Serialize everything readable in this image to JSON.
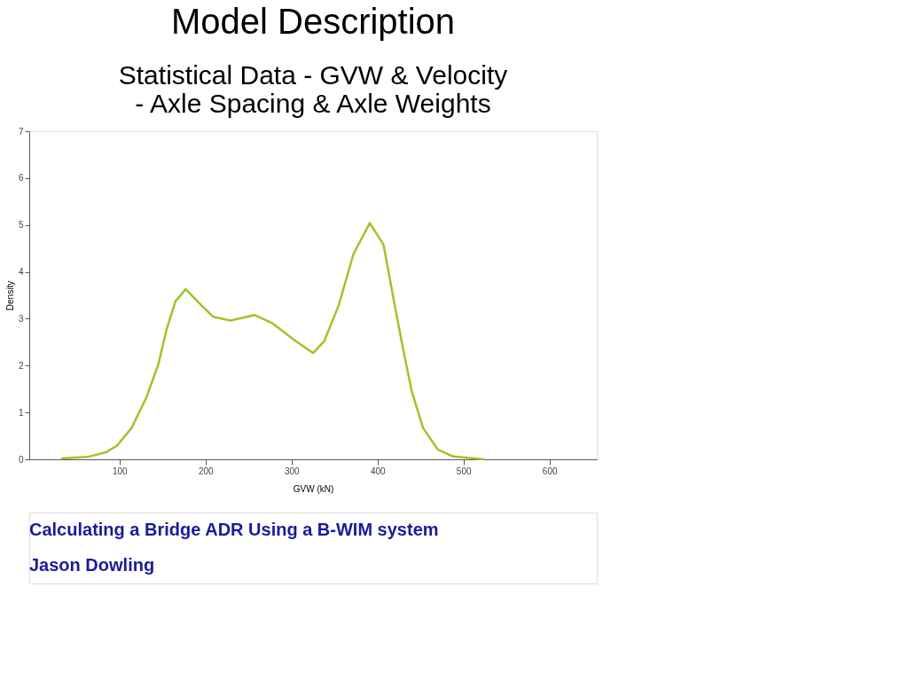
{
  "chart_data": {
    "type": "line",
    "title": "Model Description",
    "subtitle": [
      "Statistical Data - GVW & Velocity",
      "                              -  Axle Spacing & Axle Weights"
    ],
    "xlabel": "GVW (kN)",
    "ylabel": "Density",
    "x": [
      32,
      63,
      84,
      97,
      114,
      131,
      145,
      155,
      165,
      177,
      195,
      209,
      229,
      257,
      278,
      305,
      325,
      338,
      355,
      372,
      391,
      407,
      420,
      430,
      440,
      453,
      470,
      488,
      524
    ],
    "series": [
      {
        "color": "#9ec42a",
        "values": [
          0.02,
          0.05,
          0.15,
          0.29,
          0.67,
          1.31,
          2.02,
          2.79,
          3.37,
          3.63,
          3.29,
          3.04,
          2.96,
          3.08,
          2.9,
          2.52,
          2.27,
          2.52,
          3.29,
          4.38,
          5.04,
          4.58,
          3.29,
          2.33,
          1.44,
          0.67,
          0.21,
          0.06,
          0
        ]
      }
    ],
    "xlim": [
      -5,
      655
    ],
    "ylim": [
      0,
      7
    ],
    "xticks": [
      100,
      200,
      300,
      400,
      500,
      600
    ],
    "yticks": [
      0,
      1,
      2,
      3,
      4,
      5,
      6,
      7
    ],
    "grid": false,
    "legend": false,
    "marker": "none",
    "line_style": "solid",
    "annotations": [
      "Calculating a Bridge ADR Using a B-WIM system",
      "Jason Dowling"
    ]
  }
}
